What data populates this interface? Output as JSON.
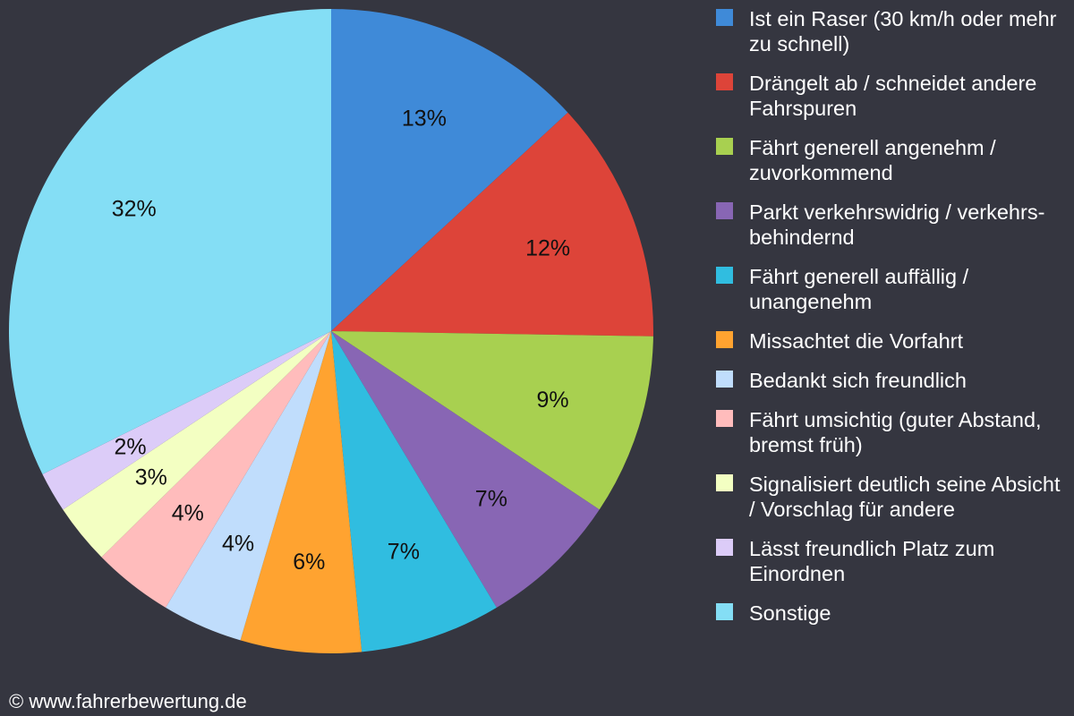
{
  "chart_data": {
    "type": "pie",
    "unit": "%",
    "slices": [
      {
        "label": "Ist ein Raser (30 km/h oder mehr zu schnell)",
        "value": 13,
        "display": "13%",
        "color": "#3f8ad8"
      },
      {
        "label": "Drängelt ab / schneidet andere Fahrspuren",
        "value": 12,
        "display": "12%",
        "color": "#dd4439"
      },
      {
        "label": "Fährt generell angenehm / zuvorkommend",
        "value": 9,
        "display": "9%",
        "color": "#a8d050"
      },
      {
        "label": "Parkt verkehrswidrig / verkehrs-behindernd",
        "value": 7,
        "display": "7%",
        "color": "#8866b4"
      },
      {
        "label": "Fährt generell auffällig / unangenehm",
        "value": 7,
        "display": "7%",
        "color": "#30bde0"
      },
      {
        "label": "Missachtet die Vorfahrt",
        "value": 6,
        "display": "6%",
        "color": "#ffa330"
      },
      {
        "label": "Bedankt sich freundlich",
        "value": 4,
        "display": "4%",
        "color": "#c0ddfc"
      },
      {
        "label": "Fährt umsichtig (guter Abstand, bremst früh)",
        "value": 4,
        "display": "4%",
        "color": "#ffbcbc"
      },
      {
        "label": "Signalisiert deutlich seine Absicht / Vorschlag für andere",
        "value": 3,
        "display": "3%",
        "color": "#f3ffc2"
      },
      {
        "label": "Lässt freundlich Platz zum Einordnen",
        "value": 2,
        "display": "2%",
        "color": "#dcccf8"
      },
      {
        "label": "Sonstige",
        "value": 32,
        "display": "32%",
        "color": "#84def5"
      }
    ],
    "start_angle": "12 o'clock",
    "direction": "clockwise",
    "legend_position": "right"
  },
  "footer": {
    "copyright": "© www.fahrerbewertung.de"
  },
  "colors": {
    "background": "#353640",
    "legend_text": "#ffffff",
    "slice_label_text": "#111111"
  }
}
